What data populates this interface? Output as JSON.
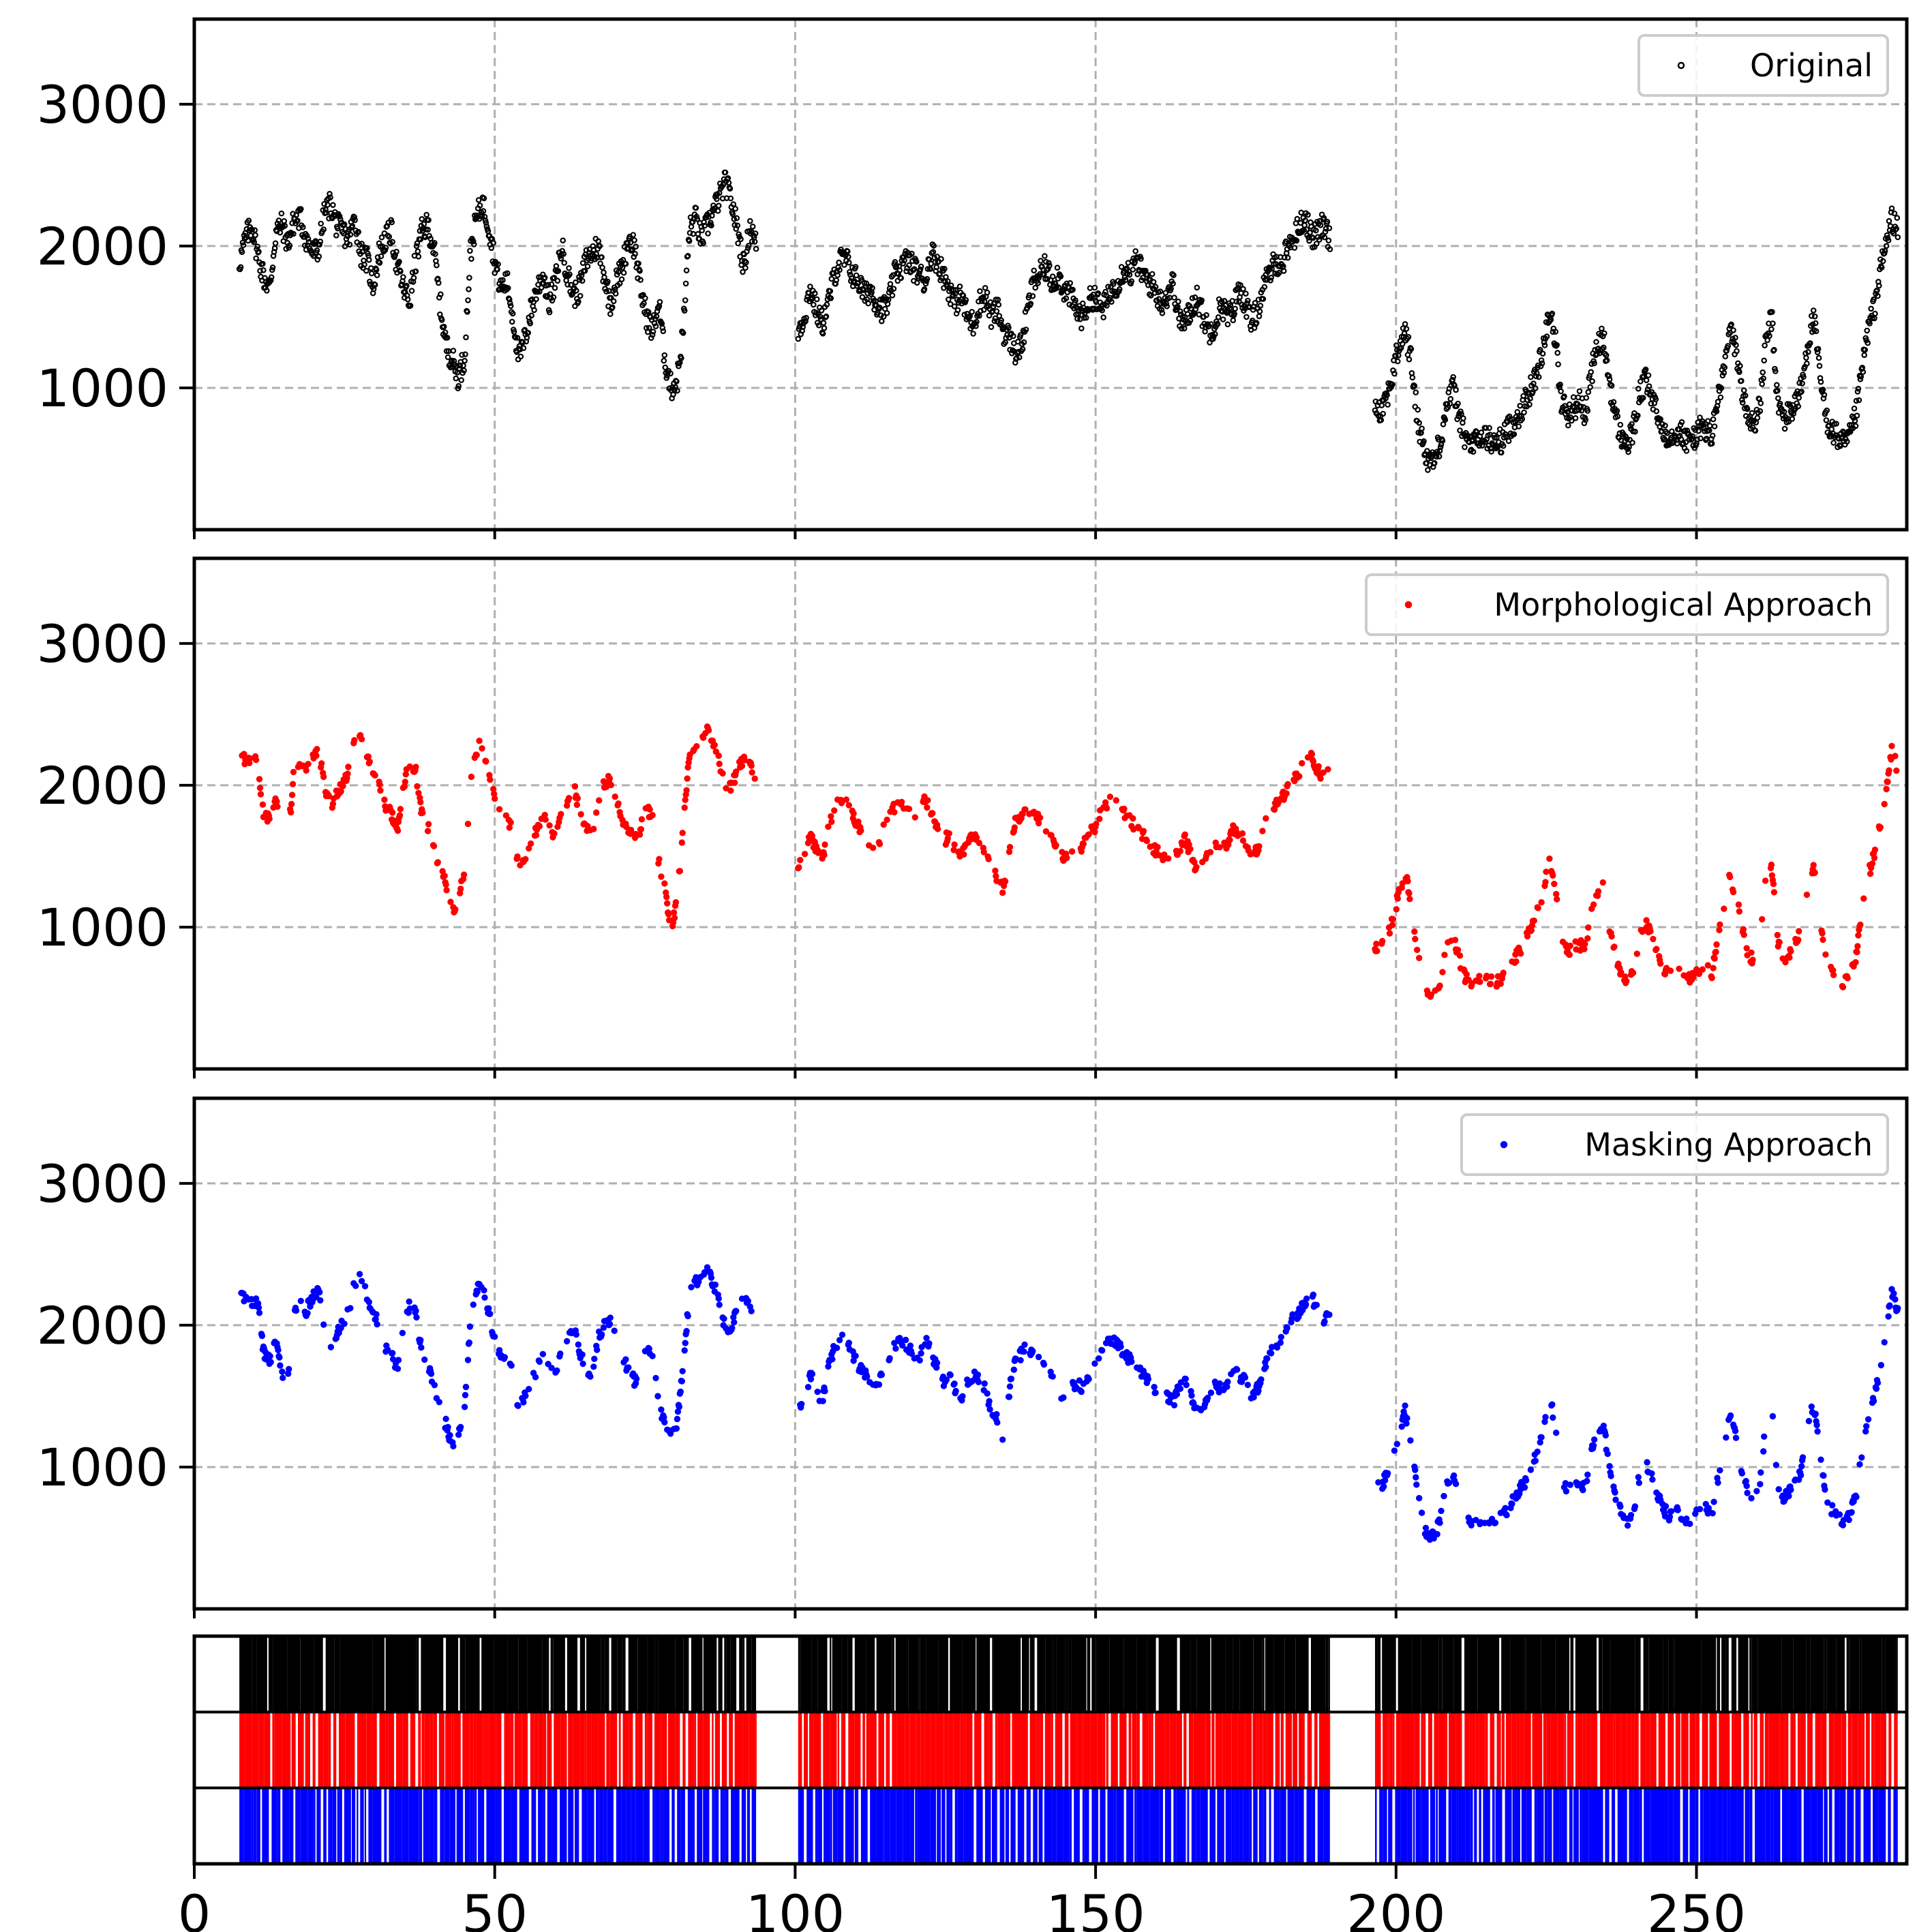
{
  "figure": {
    "x_range": [
      0,
      285
    ],
    "x_ticks": [
      0,
      50,
      100,
      150,
      200,
      250
    ],
    "grid": true
  },
  "chart_data": [
    {
      "type": "scatter",
      "panel": "original",
      "legend": "Original",
      "legend_position": "top-right",
      "color": "#000000",
      "ylim": [
        0,
        3600
      ],
      "y_ticks": [
        1000,
        2000,
        3000
      ],
      "segments": [
        {
          "x_start": 7.5,
          "x_end": 93.5,
          "values": [
            1880,
            2050,
            2150,
            1950,
            1780,
            1700,
            2100,
            2150,
            2020,
            2180,
            2200,
            2050,
            1950,
            1980,
            2230,
            2300,
            2150,
            2100,
            2050,
            2200,
            1950,
            1900,
            1720,
            1950,
            2050,
            2100,
            1850,
            1700,
            1600,
            1900,
            2100,
            2150,
            1980,
            1600,
            1300,
            1200,
            1080,
            1200,
            1950,
            2200,
            2300,
            2150,
            1900,
            1700,
            1750,
            1500,
            1200,
            1350,
            1550,
            1700,
            1800,
            1600,
            1750,
            2000,
            1800,
            1650,
            1700,
            1900,
            1950,
            2000,
            1800,
            1600,
            1750,
            1850,
            2050,
            2000,
            1700,
            1500,
            1400,
            1600,
            1200,
            1000,
            1050,
            1400,
            2100,
            2200,
            2050,
            2150,
            2250,
            2350,
            2450,
            2300,
            2100,
            1850,
            2150,
            2000
          ]
        },
        {
          "x_start": 100.5,
          "x_end": 189.0,
          "values": [
            1400,
            1500,
            1700,
            1550,
            1450,
            1600,
            1800,
            1900,
            1900,
            1800,
            1750,
            1650,
            1700,
            1600,
            1550,
            1600,
            1800,
            1850,
            1900,
            1850,
            1800,
            1750,
            1950,
            1900,
            1800,
            1700,
            1600,
            1650,
            1500,
            1450,
            1600,
            1650,
            1500,
            1550,
            1400,
            1350,
            1250,
            1300,
            1550,
            1750,
            1800,
            1850,
            1750,
            1800,
            1700,
            1650,
            1550,
            1500,
            1600,
            1650,
            1550,
            1600,
            1700,
            1750,
            1850,
            1800,
            1900,
            1800,
            1750,
            1700,
            1600,
            1650,
            1750,
            1500,
            1450,
            1550,
            1650,
            1500,
            1400,
            1450,
            1600,
            1500,
            1550,
            1700,
            1600,
            1450,
            1550,
            1700,
            1800,
            1900,
            1850,
            2000,
            2050,
            2150,
            2200,
            2050,
            2100,
            2150,
            2050
          ]
        },
        {
          "x_start": 196.5,
          "x_end": 283.5,
          "values": [
            880,
            850,
            950,
            1100,
            1300,
            1400,
            1200,
            800,
            600,
            480,
            500,
            650,
            900,
            1000,
            800,
            650,
            600,
            620,
            650,
            640,
            600,
            630,
            700,
            750,
            820,
            900,
            1000,
            1100,
            1300,
            1550,
            1350,
            900,
            820,
            850,
            900,
            820,
            1100,
            1300,
            1350,
            1050,
            800,
            650,
            600,
            700,
            950,
            1050,
            950,
            800,
            700,
            650,
            700,
            680,
            620,
            650,
            700,
            720,
            650,
            900,
            1100,
            1400,
            1300,
            1000,
            800,
            750,
            850,
            1300,
            1500,
            900,
            780,
            820,
            900,
            1000,
            1300,
            1500,
            1100,
            800,
            700,
            650,
            600,
            650,
            800,
            1100,
            1400,
            1550,
            1800,
            2000,
            2200,
            2100
          ]
        }
      ]
    },
    {
      "type": "scatter",
      "panel": "morphological",
      "legend": "Morphological Approach",
      "legend_position": "top-right",
      "color": "#ff0000",
      "ylim": [
        0,
        3600
      ],
      "y_ticks": [
        1000,
        2000,
        3000
      ],
      "segments": [
        {
          "x_start": 7.5,
          "x_end": 93.5,
          "values": [
            2200,
            2180,
            2170,
            2160,
            1800,
            1750,
            1900,
            1650,
            1620,
            2100,
            2150,
            2100,
            2200,
            2250,
            2000,
            1850,
            1950,
            2000,
            2100,
            2300,
            2350,
            2200,
            2100,
            2000,
            1850,
            1800,
            1700,
            2000,
            2150,
            2100,
            1800,
            1700,
            1600,
            1400,
            1300,
            1100,
            1200,
            1400,
            2000,
            2250,
            2300,
            2100,
            1900,
            1800,
            1800,
            1650,
            1400,
            1500,
            1600,
            1700,
            1800,
            1700,
            1650,
            1800,
            1900,
            2000,
            1800,
            1700,
            1650,
            1900,
            2000,
            2050,
            1900,
            1750,
            1700,
            1600,
            1700,
            1850,
            1750,
            1450,
            1300,
            950,
            1200,
            1700,
            2200,
            2300,
            2350,
            2400,
            2300,
            2150,
            1950,
            2000,
            2100,
            2200,
            2150,
            2000
          ]
        },
        {
          "x_start": 100.5,
          "x_end": 189.0,
          "values": [
            1400,
            1500,
            1650,
            1550,
            1450,
            1700,
            1850,
            1900,
            1900,
            1800,
            1700,
            1650,
            1600,
            1550,
            1700,
            1750,
            1850,
            1900,
            1850,
            1800,
            1750,
            1900,
            1800,
            1700,
            1600,
            1650,
            1550,
            1500,
            1600,
            1650,
            1600,
            1550,
            1400,
            1350,
            1250,
            1550,
            1750,
            1800,
            1850,
            1800,
            1750,
            1700,
            1650,
            1550,
            1500,
            1550,
            1600,
            1550,
            1650,
            1700,
            1800,
            1850,
            1900,
            1850,
            1800,
            1750,
            1700,
            1650,
            1600,
            1550,
            1500,
            1500,
            1450,
            1550,
            1650,
            1500,
            1400,
            1450,
            1500,
            1600,
            1550,
            1600,
            1700,
            1650,
            1600,
            1500,
            1550,
            1700,
            1800,
            1850,
            1900,
            2000,
            2050,
            2100,
            2150,
            2200,
            2100,
            2050,
            2100
          ]
        },
        {
          "x_start": 196.5,
          "x_end": 283.5,
          "values": [
            870,
            860,
            940,
            1050,
            1250,
            1400,
            1150,
            850,
            600,
            500,
            520,
            650,
            900,
            950,
            780,
            650,
            600,
            620,
            640,
            630,
            610,
            640,
            700,
            760,
            830,
            900,
            1000,
            1100,
            1250,
            1500,
            1300,
            900,
            830,
            850,
            880,
            840,
            1100,
            1250,
            1300,
            1000,
            800,
            660,
            610,
            690,
            940,
            1030,
            940,
            800,
            700,
            660,
            690,
            670,
            630,
            650,
            690,
            720,
            660,
            900,
            1100,
            1350,
            1250,
            1000,
            820,
            760,
            850,
            1300,
            1450,
            900,
            780,
            820,
            900,
            990,
            1300,
            1450,
            1100,
            800,
            700,
            660,
            610,
            650,
            790,
            1100,
            1350,
            1500,
            1700,
            1950,
            2250,
            2100
          ]
        }
      ]
    },
    {
      "type": "scatter",
      "panel": "masking",
      "legend": "Masking Approach",
      "legend_position": "top-right",
      "color": "#0000ff",
      "ylim": [
        0,
        3600
      ],
      "y_ticks": [
        1000,
        2000,
        3000
      ],
      "segments": [
        {
          "x_start": 7.5,
          "x_end": 93.5,
          "values": [
            2200,
            2180,
            2170,
            2160,
            1800,
            1750,
            1900,
            1650,
            1620,
            2100,
            2150,
            2100,
            2200,
            2250,
            2000,
            1850,
            1950,
            2000,
            2100,
            2300,
            2350,
            2200,
            2100,
            2000,
            1850,
            1800,
            1700,
            2000,
            2150,
            2100,
            1800,
            1700,
            1600,
            1400,
            1300,
            1150,
            1250,
            1400,
            2000,
            2250,
            2300,
            2100,
            1900,
            1800,
            1800,
            1650,
            1400,
            1500,
            1600,
            1700,
            1800,
            1700,
            1650,
            1800,
            1900,
            2000,
            1800,
            1700,
            1650,
            1900,
            2000,
            2050,
            1900,
            1750,
            1700,
            1600,
            1700,
            1850,
            1750,
            1450,
            1300,
            1200,
            1300,
            1700,
            2200,
            2300,
            2350,
            2400,
            2300,
            2150,
            1950,
            2000,
            2100,
            2200,
            2150,
            2000
          ]
        },
        {
          "x_start": 100.5,
          "x_end": 189.0,
          "values": [
            1420,
            1500,
            1650,
            1550,
            1450,
            1700,
            1850,
            1900,
            1900,
            1800,
            1700,
            1650,
            1600,
            1550,
            1700,
            1750,
            1850,
            1900,
            1850,
            1800,
            1750,
            1900,
            1800,
            1700,
            1600,
            1650,
            1550,
            1500,
            1600,
            1650,
            1600,
            1550,
            1400,
            1350,
            1150,
            1550,
            1750,
            1800,
            1850,
            1800,
            1750,
            1700,
            1650,
            1550,
            1500,
            1550,
            1600,
            1550,
            1650,
            1700,
            1800,
            1850,
            1900,
            1850,
            1800,
            1750,
            1700,
            1650,
            1600,
            1550,
            1500,
            1500,
            1450,
            1550,
            1650,
            1500,
            1400,
            1450,
            1500,
            1600,
            1550,
            1600,
            1700,
            1650,
            1600,
            1500,
            1550,
            1700,
            1800,
            1850,
            1900,
            2000,
            2050,
            2100,
            2150,
            2200,
            2100,
            2050,
            2100
          ]
        },
        {
          "x_start": 196.5,
          "x_end": 283.5,
          "values": [
            870,
            860,
            940,
            1050,
            1250,
            1400,
            1150,
            850,
            600,
            500,
            520,
            650,
            900,
            950,
            780,
            650,
            600,
            620,
            640,
            630,
            610,
            640,
            700,
            760,
            830,
            900,
            1000,
            1100,
            1250,
            1500,
            1300,
            900,
            830,
            850,
            880,
            840,
            1100,
            1250,
            1300,
            1000,
            800,
            660,
            610,
            690,
            940,
            1030,
            940,
            800,
            700,
            660,
            690,
            670,
            630,
            650,
            690,
            720,
            660,
            900,
            1100,
            1350,
            1250,
            1000,
            820,
            760,
            850,
            1300,
            1450,
            900,
            780,
            820,
            900,
            990,
            1300,
            1450,
            1100,
            800,
            700,
            660,
            610,
            650,
            790,
            1100,
            1350,
            1500,
            1700,
            1950,
            2250,
            2100
          ]
        }
      ]
    },
    {
      "type": "heatmap",
      "panel": "coverage",
      "rows": [
        {
          "color": "#000000",
          "segments": [
            [
              7.5,
              93.5
            ],
            [
              100.5,
              189.0
            ],
            [
              196.5,
              283.5
            ]
          ]
        },
        {
          "color": "#ff0000",
          "segments": [
            [
              7.5,
              93.5
            ],
            [
              100.5,
              189.0
            ],
            [
              196.5,
              283.5
            ]
          ]
        },
        {
          "color": "#0000ff",
          "segments": [
            [
              7.5,
              93.5
            ],
            [
              100.5,
              189.0
            ],
            [
              196.5,
              283.5
            ]
          ]
        }
      ]
    }
  ]
}
